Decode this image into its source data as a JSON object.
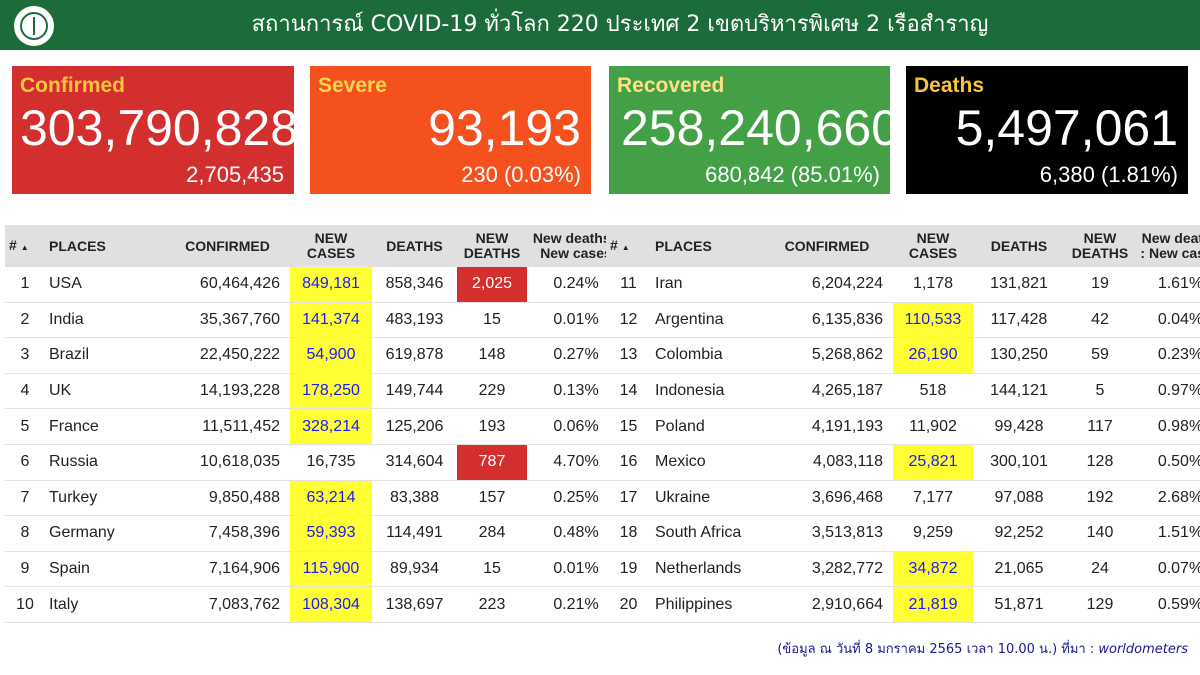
{
  "header": {
    "title": "สถานการณ์ COVID-19 ทั่วโลก 220 ประเทศ 2 เขตบริหารพิเศษ 2 เรือสำราญ"
  },
  "cards": [
    {
      "label": "Confirmed",
      "value": "303,790,828",
      "sub": "2,705,435"
    },
    {
      "label": "Severe",
      "value": "93,193",
      "sub": "230 (0.03%)"
    },
    {
      "label": "Recovered",
      "value": "258,240,660",
      "sub": "680,842 (85.01%)"
    },
    {
      "label": "Deaths",
      "value": "5,497,061",
      "sub": "6,380 (1.81%)"
    }
  ],
  "columns": [
    "#",
    "PLACES",
    "CONFIRMED",
    "NEW CASES",
    "DEATHS",
    "NEW DEATHS"
  ],
  "columns_ratio_left": "New deaths : New cases",
  "columns_ratio_right": "New deaths : New cases",
  "sort_icon": "▲",
  "rows_left": [
    {
      "n": "1",
      "place": "USA",
      "confirmed": "60,464,426",
      "new_cases": "849,181",
      "deaths": "858,346",
      "new_deaths": "2,025",
      "ratio": "0.24%",
      "hl_cases": true,
      "hl_deaths": true
    },
    {
      "n": "2",
      "place": "India",
      "confirmed": "35,367,760",
      "new_cases": "141,374",
      "deaths": "483,193",
      "new_deaths": "15",
      "ratio": "0.01%",
      "hl_cases": true,
      "hl_deaths": false
    },
    {
      "n": "3",
      "place": "Brazil",
      "confirmed": "22,450,222",
      "new_cases": "54,900",
      "deaths": "619,878",
      "new_deaths": "148",
      "ratio": "0.27%",
      "hl_cases": true,
      "hl_deaths": false
    },
    {
      "n": "4",
      "place": "UK",
      "confirmed": "14,193,228",
      "new_cases": "178,250",
      "deaths": "149,744",
      "new_deaths": "229",
      "ratio": "0.13%",
      "hl_cases": true,
      "hl_deaths": false
    },
    {
      "n": "5",
      "place": "France",
      "confirmed": "11,511,452",
      "new_cases": "328,214",
      "deaths": "125,206",
      "new_deaths": "193",
      "ratio": "0.06%",
      "hl_cases": true,
      "hl_deaths": false
    },
    {
      "n": "6",
      "place": "Russia",
      "confirmed": "10,618,035",
      "new_cases": "16,735",
      "deaths": "314,604",
      "new_deaths": "787",
      "ratio": "4.70%",
      "hl_cases": false,
      "hl_deaths": true
    },
    {
      "n": "7",
      "place": "Turkey",
      "confirmed": "9,850,488",
      "new_cases": "63,214",
      "deaths": "83,388",
      "new_deaths": "157",
      "ratio": "0.25%",
      "hl_cases": true,
      "hl_deaths": false
    },
    {
      "n": "8",
      "place": "Germany",
      "confirmed": "7,458,396",
      "new_cases": "59,393",
      "deaths": "114,491",
      "new_deaths": "284",
      "ratio": "0.48%",
      "hl_cases": true,
      "hl_deaths": false
    },
    {
      "n": "9",
      "place": "Spain",
      "confirmed": "7,164,906",
      "new_cases": "115,900",
      "deaths": "89,934",
      "new_deaths": "15",
      "ratio": "0.01%",
      "hl_cases": true,
      "hl_deaths": false
    },
    {
      "n": "10",
      "place": "Italy",
      "confirmed": "7,083,762",
      "new_cases": "108,304",
      "deaths": "138,697",
      "new_deaths": "223",
      "ratio": "0.21%",
      "hl_cases": true,
      "hl_deaths": false
    }
  ],
  "rows_right": [
    {
      "n": "11",
      "place": "Iran",
      "confirmed": "6,204,224",
      "new_cases": "1,178",
      "deaths": "131,821",
      "new_deaths": "19",
      "ratio": "1.61%",
      "hl_cases": false,
      "hl_deaths": false
    },
    {
      "n": "12",
      "place": "Argentina",
      "confirmed": "6,135,836",
      "new_cases": "110,533",
      "deaths": "117,428",
      "new_deaths": "42",
      "ratio": "0.04%",
      "hl_cases": true,
      "hl_deaths": false
    },
    {
      "n": "13",
      "place": "Colombia",
      "confirmed": "5,268,862",
      "new_cases": "26,190",
      "deaths": "130,250",
      "new_deaths": "59",
      "ratio": "0.23%",
      "hl_cases": true,
      "hl_deaths": false
    },
    {
      "n": "14",
      "place": "Indonesia",
      "confirmed": "4,265,187",
      "new_cases": "518",
      "deaths": "144,121",
      "new_deaths": "5",
      "ratio": "0.97%",
      "hl_cases": false,
      "hl_deaths": false
    },
    {
      "n": "15",
      "place": "Poland",
      "confirmed": "4,191,193",
      "new_cases": "11,902",
      "deaths": "99,428",
      "new_deaths": "117",
      "ratio": "0.98%",
      "hl_cases": false,
      "hl_deaths": false
    },
    {
      "n": "16",
      "place": "Mexico",
      "confirmed": "4,083,118",
      "new_cases": "25,821",
      "deaths": "300,101",
      "new_deaths": "128",
      "ratio": "0.50%",
      "hl_cases": true,
      "hl_deaths": false
    },
    {
      "n": "17",
      "place": "Ukraine",
      "confirmed": "3,696,468",
      "new_cases": "7,177",
      "deaths": "97,088",
      "new_deaths": "192",
      "ratio": "2.68%",
      "hl_cases": false,
      "hl_deaths": false
    },
    {
      "n": "18",
      "place": "South Africa",
      "confirmed": "3,513,813",
      "new_cases": "9,259",
      "deaths": "92,252",
      "new_deaths": "140",
      "ratio": "1.51%",
      "hl_cases": false,
      "hl_deaths": false
    },
    {
      "n": "19",
      "place": "Netherlands",
      "confirmed": "3,282,772",
      "new_cases": "34,872",
      "deaths": "21,065",
      "new_deaths": "24",
      "ratio": "0.07%",
      "hl_cases": true,
      "hl_deaths": false
    },
    {
      "n": "20",
      "place": "Philippines",
      "confirmed": "2,910,664",
      "new_cases": "21,819",
      "deaths": "51,871",
      "new_deaths": "129",
      "ratio": "0.59%",
      "hl_cases": true,
      "hl_deaths": false
    }
  ],
  "footer": {
    "text": "(ข้อมูล ณ วันที่ 8 มกราคม 2565 เวลา 10.00 น.) ที่มา : ",
    "source": "worldometers"
  }
}
